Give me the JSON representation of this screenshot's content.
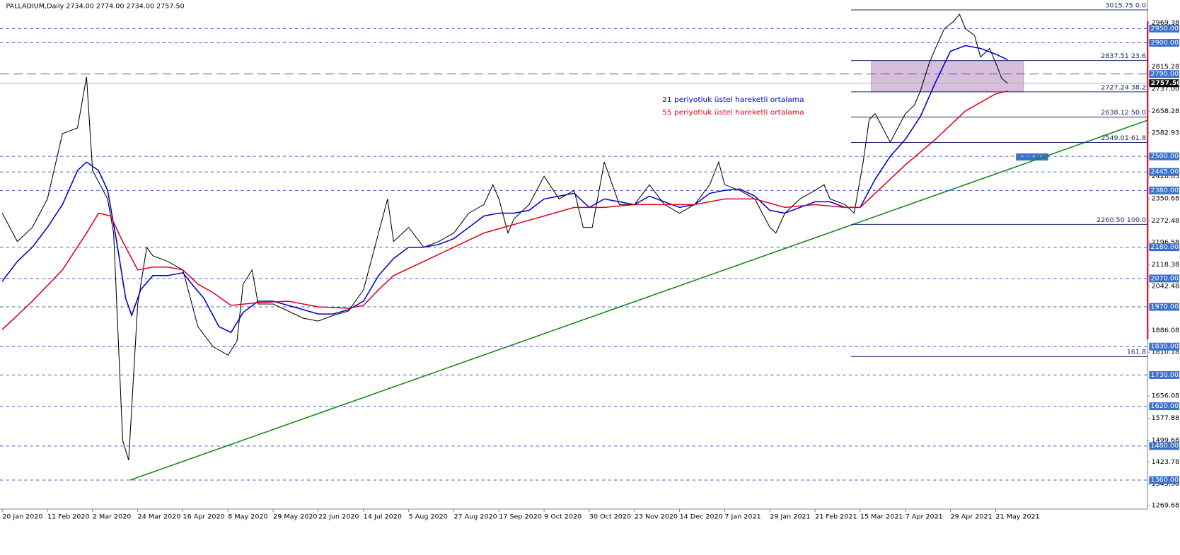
{
  "chart_data": {
    "type": "line",
    "title": "PALLADIUM,Daily  2734.00 2774.00 2734.00 2757.50",
    "xlim": [
      -0.75,
      380.5
    ],
    "xticks": [
      {
        "value": 0,
        "label": "20 Jan 2020"
      },
      {
        "value": 15,
        "label": "11 Feb 2020"
      },
      {
        "value": 30,
        "label": "2 Mar 2020"
      },
      {
        "value": 45,
        "label": "24 Mar 2020"
      },
      {
        "value": 60,
        "label": "16 Apr 2020"
      },
      {
        "value": 75,
        "label": "8 May 2020"
      },
      {
        "value": 90,
        "label": "29 May 2020"
      },
      {
        "value": 105,
        "label": "22 Jun 2020"
      },
      {
        "value": 120,
        "label": "14 Jul 2020"
      },
      {
        "value": 135,
        "label": "5 Aug 2020"
      },
      {
        "value": 150,
        "label": "27 Aug 2020"
      },
      {
        "value": 165,
        "label": "17 Sep 2020"
      },
      {
        "value": 180,
        "label": "9 Oct 2020"
      },
      {
        "value": 195,
        "label": "30 Oct 2020"
      },
      {
        "value": 210,
        "label": "23 Nov 2020"
      },
      {
        "value": 225,
        "label": "14 Dec 2020"
      },
      {
        "value": 240,
        "label": "7 Jan 2021"
      },
      {
        "value": 255,
        "label": "29 Jan 2021"
      },
      {
        "value": 270,
        "label": "21 Feb 2021"
      },
      {
        "value": 285,
        "label": "15 Mar 2021"
      },
      {
        "value": 300,
        "label": "7 Apr 2021"
      },
      {
        "value": 315,
        "label": "29 Apr 2021"
      },
      {
        "value": 330,
        "label": "21 May 2021"
      }
    ],
    "ylim": [
      1258,
      3050.6
    ],
    "yticks": [
      2969.38,
      2815.28,
      {
        "value": 2737,
        "label": "2737.00"
      },
      2658.28,
      2582.93,
      2428.63,
      2350.68,
      2272.48,
      2196.58,
      2118.38,
      2042.48,
      1886.08,
      1810.18,
      1656.08,
      1577.88,
      1499.68,
      1423.78,
      1345.58,
      1269.68
    ],
    "levels": [
      {
        "value": 2950,
        "label": "2950.00"
      },
      {
        "value": 2900,
        "label": "2900.00"
      },
      {
        "value": 2790,
        "label": "2790.00"
      },
      {
        "value": 2500,
        "label": "2500.00"
      },
      {
        "value": 2445,
        "label": "2445.00"
      },
      {
        "value": 2380,
        "label": "2380.00"
      },
      {
        "value": 2180,
        "label": "2180.00"
      },
      {
        "value": 2070,
        "label": "2070.00"
      },
      {
        "value": 1970,
        "label": "1970.00"
      },
      {
        "value": 1830,
        "label": "1830.00"
      },
      {
        "value": 1730,
        "label": "1730.00"
      },
      {
        "value": 1620,
        "label": "1620.00"
      },
      {
        "value": 1480,
        "label": "1480.00"
      },
      {
        "value": 1360,
        "label": "1360.00"
      }
    ],
    "fib_levels": [
      {
        "value": 3015.75,
        "label": "3015.75 0.0"
      },
      {
        "value": 2837.51,
        "label": "2837.51 23.6"
      },
      {
        "value": 2727.24,
        "label": "2727.24 38.2"
      },
      {
        "value": 2638.12,
        "label": "2638.12 50.0"
      },
      {
        "value": 2549.01,
        "label": "2549.01 61.8"
      },
      {
        "value": 2260.5,
        "label": "2260.50 100.0"
      },
      {
        "value": 1795,
        "label": "161.8"
      }
    ],
    "current_price": {
      "value": 2757.5,
      "label": "2757.50"
    },
    "series": [
      {
        "color": "#000000",
        "x": [
          0,
          5,
          10,
          15,
          20,
          25,
          28,
          30,
          35,
          37,
          40,
          42,
          45,
          48,
          50,
          55,
          60,
          63,
          65,
          70,
          75,
          78,
          80,
          83,
          85,
          90,
          95,
          100,
          105,
          110,
          115,
          120,
          125,
          128,
          130,
          135,
          140,
          145,
          150,
          155,
          160,
          163,
          165,
          168,
          170,
          175,
          180,
          185,
          190,
          193,
          196,
          200,
          205,
          210,
          215,
          220,
          225,
          230,
          235,
          238,
          240,
          245,
          250,
          255,
          257,
          260,
          265,
          270,
          273,
          275,
          280,
          283,
          286,
          288,
          290,
          295,
          300,
          303,
          305,
          308,
          310,
          313,
          316,
          318,
          320,
          323,
          325,
          328,
          330,
          332,
          334
        ],
        "values": [
          2300,
          2200,
          2250,
          2350,
          2580,
          2600,
          2780,
          2450,
          2350,
          2230,
          1500,
          1430,
          1980,
          2180,
          2150,
          2130,
          2100,
          1980,
          1900,
          1830,
          1800,
          1850,
          2050,
          2100,
          1980,
          1980,
          1955,
          1930,
          1920,
          1940,
          1955,
          2030,
          2230,
          2350,
          2200,
          2250,
          2180,
          2200,
          2230,
          2300,
          2330,
          2400,
          2350,
          2230,
          2280,
          2330,
          2430,
          2350,
          2380,
          2250,
          2250,
          2480,
          2330,
          2330,
          2400,
          2330,
          2300,
          2330,
          2400,
          2480,
          2400,
          2380,
          2350,
          2250,
          2230,
          2300,
          2350,
          2380,
          2400,
          2350,
          2330,
          2300,
          2480,
          2630,
          2650,
          2550,
          2650,
          2680,
          2730,
          2830,
          2880,
          2950,
          2975,
          3000,
          2950,
          2925,
          2850,
          2880,
          2830,
          2775,
          2757.5
        ]
      },
      {
        "name": "21 periyotluk üstel hareketli ortalama",
        "color": "#0000cc",
        "x": [
          0,
          5,
          10,
          15,
          20,
          25,
          28,
          32,
          35,
          38,
          41,
          43,
          46,
          50,
          55,
          60,
          63,
          67,
          72,
          76,
          80,
          85,
          90,
          95,
          100,
          105,
          110,
          115,
          120,
          125,
          130,
          135,
          140,
          145,
          150,
          155,
          160,
          165,
          170,
          175,
          180,
          185,
          190,
          195,
          200,
          205,
          210,
          215,
          220,
          225,
          230,
          235,
          240,
          245,
          250,
          255,
          260,
          265,
          270,
          275,
          280,
          285,
          290,
          295,
          300,
          305,
          310,
          315,
          320,
          325,
          330,
          334
        ],
        "values": [
          2060,
          2130,
          2180,
          2250,
          2330,
          2450,
          2480,
          2450,
          2380,
          2200,
          2000,
          1940,
          2030,
          2080,
          2080,
          2090,
          2050,
          2000,
          1900,
          1880,
          1950,
          1990,
          1990,
          1975,
          1960,
          1945,
          1945,
          1960,
          1990,
          2080,
          2140,
          2180,
          2180,
          2190,
          2210,
          2250,
          2290,
          2300,
          2300,
          2310,
          2350,
          2360,
          2370,
          2320,
          2350,
          2340,
          2330,
          2360,
          2340,
          2320,
          2330,
          2370,
          2380,
          2385,
          2360,
          2310,
          2300,
          2320,
          2340,
          2340,
          2320,
          2320,
          2420,
          2500,
          2560,
          2640,
          2760,
          2870,
          2890,
          2880,
          2860,
          2840
        ]
      },
      {
        "name": "55 periyotluk üstel hareketli ortalama",
        "color": "#e0001b",
        "x": [
          0,
          10,
          20,
          28,
          32,
          36,
          40,
          45,
          50,
          55,
          60,
          65,
          70,
          76,
          85,
          95,
          105,
          115,
          120,
          125,
          130,
          140,
          150,
          160,
          170,
          180,
          190,
          200,
          210,
          220,
          230,
          240,
          250,
          260,
          270,
          280,
          285,
          290,
          300,
          310,
          320,
          330,
          334
        ],
        "values": [
          1890,
          1990,
          2100,
          2230,
          2300,
          2290,
          2200,
          2100,
          2110,
          2110,
          2100,
          2050,
          2020,
          1975,
          1985,
          1990,
          1970,
          1965,
          1975,
          2030,
          2080,
          2130,
          2180,
          2230,
          2260,
          2290,
          2320,
          2320,
          2330,
          2330,
          2330,
          2350,
          2350,
          2320,
          2330,
          2320,
          2320,
          2370,
          2470,
          2560,
          2660,
          2720,
          2730
        ]
      }
    ]
  }
}
